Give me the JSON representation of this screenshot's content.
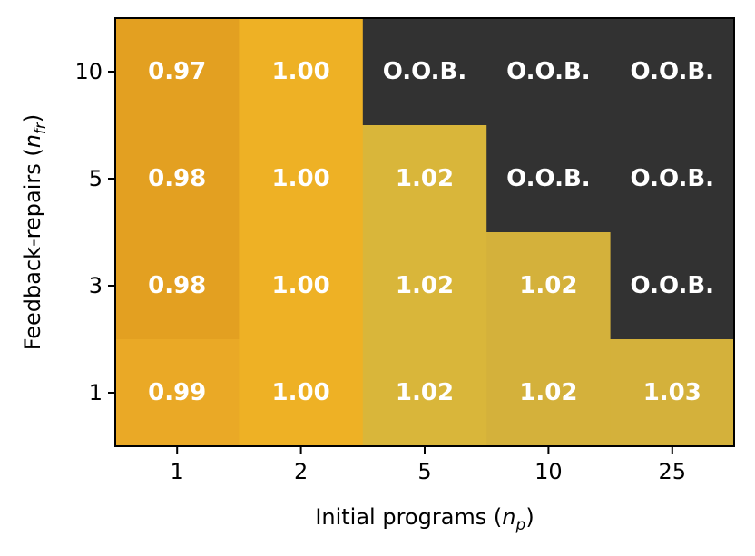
{
  "chart_data": {
    "type": "heatmap",
    "title": "",
    "xlabel": {
      "text": "Initial programs (",
      "var": "n",
      "sub": "p",
      "close": ")"
    },
    "ylabel": {
      "text": "Feedback-repairs (",
      "var": "n",
      "sub": "fr",
      "close": ")"
    },
    "x_categories": [
      "1",
      "2",
      "5",
      "10",
      "25"
    ],
    "y_categories": [
      "10",
      "5",
      "3",
      "1"
    ],
    "values": [
      [
        0.97,
        1.0,
        null,
        null,
        null
      ],
      [
        0.98,
        1.0,
        1.02,
        null,
        null
      ],
      [
        0.98,
        1.0,
        1.02,
        1.02,
        null
      ],
      [
        0.99,
        1.0,
        1.02,
        1.02,
        1.03
      ]
    ],
    "labels": [
      [
        "0.97",
        "1.00",
        "O.O.B.",
        "O.O.B.",
        "O.O.B."
      ],
      [
        "0.98",
        "1.00",
        "1.02",
        "O.O.B.",
        "O.O.B."
      ],
      [
        "0.98",
        "1.00",
        "1.02",
        "1.02",
        "O.O.B."
      ],
      [
        "0.99",
        "1.00",
        "1.02",
        "1.02",
        "1.03"
      ]
    ],
    "colors": [
      [
        "#e3a021",
        "#eeb125",
        "#323232",
        "#323232",
        "#323232"
      ],
      [
        "#e3a021",
        "#eeb125",
        "#d9b63a",
        "#323232",
        "#323232"
      ],
      [
        "#e3a021",
        "#eeb125",
        "#d9b63a",
        "#d4b13b",
        "#323232"
      ],
      [
        "#eaa926",
        "#eeb125",
        "#d9b63a",
        "#d4b13b",
        "#d4b13b"
      ]
    ],
    "missing_label": "O.O.B.",
    "missing_color": "#323232",
    "grid": false,
    "colorbar": false
  }
}
